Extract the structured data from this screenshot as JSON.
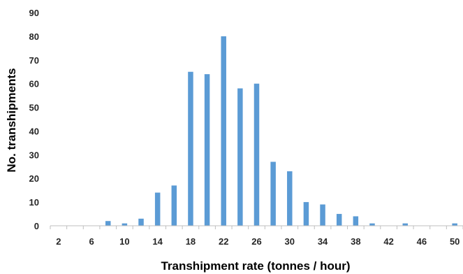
{
  "chart_data": {
    "type": "bar",
    "title": "",
    "xlabel": "Transhipment rate (tonnes / hour)",
    "ylabel": "No. transhipments",
    "ylim": [
      0,
      90
    ],
    "yticks": [
      0,
      10,
      20,
      30,
      40,
      50,
      60,
      70,
      80,
      90
    ],
    "xtick_labels": [
      "2",
      "6",
      "10",
      "14",
      "18",
      "22",
      "26",
      "30",
      "34",
      "38",
      "42",
      "46",
      "50"
    ],
    "categories": [
      2,
      4,
      6,
      8,
      10,
      12,
      14,
      16,
      18,
      20,
      22,
      24,
      26,
      28,
      30,
      32,
      34,
      36,
      38,
      40,
      42,
      44,
      46,
      48,
      50
    ],
    "values": [
      0,
      0,
      0,
      2,
      1,
      3,
      14,
      17,
      65,
      64,
      80,
      58,
      60,
      27,
      23,
      10,
      9,
      5,
      4,
      1,
      0,
      1,
      0,
      0,
      1
    ],
    "bar_color": "#5b9bd5",
    "grid": false,
    "legend": "none"
  }
}
